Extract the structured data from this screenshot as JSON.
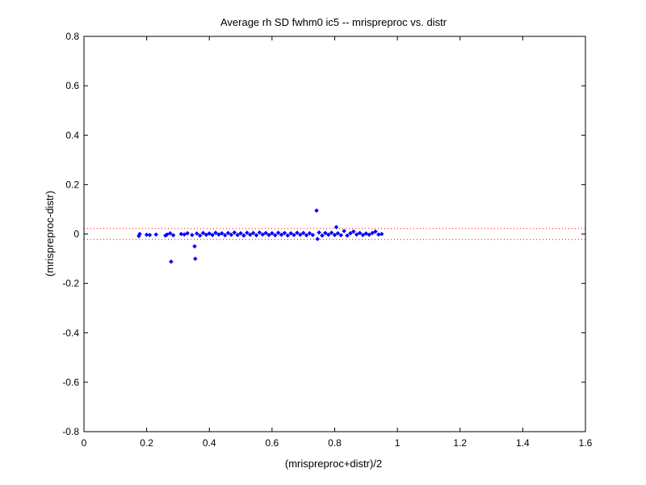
{
  "chart_data": {
    "type": "scatter",
    "title": "Average rh SD fwhm0 ic5 -- mrispreproc vs. distr",
    "xlabel": "(mrispreproc+distr)/2",
    "ylabel": "(mrispreproc-distr)",
    "xlim": [
      0,
      1.6
    ],
    "ylim": [
      -0.8,
      0.8
    ],
    "x_ticks": [
      "0",
      "0.2",
      "0.4",
      "0.6",
      "0.8",
      "1",
      "1.2",
      "1.4",
      "1.6"
    ],
    "y_ticks": [
      "-0.8",
      "-0.6",
      "-0.4",
      "-0.2",
      "0",
      "0.2",
      "0.4",
      "0.6",
      "0.8"
    ],
    "grid": false,
    "marker_color": "#0000ff",
    "reference_line_color": "#ff0000",
    "reference_lines": [
      0.022,
      -0.022
    ],
    "points": [
      [
        0.175,
        -0.008
      ],
      [
        0.178,
        0.0
      ],
      [
        0.2,
        -0.003
      ],
      [
        0.21,
        -0.004
      ],
      [
        0.23,
        -0.002
      ],
      [
        0.26,
        -0.006
      ],
      [
        0.265,
        -0.002
      ],
      [
        0.275,
        0.003
      ],
      [
        0.278,
        -0.112
      ],
      [
        0.285,
        -0.005
      ],
      [
        0.31,
        0.0
      ],
      [
        0.32,
        -0.002
      ],
      [
        0.33,
        0.003
      ],
      [
        0.345,
        -0.004
      ],
      [
        0.353,
        -0.05
      ],
      [
        0.355,
        -0.1
      ],
      [
        0.36,
        0.002
      ],
      [
        0.37,
        -0.006
      ],
      [
        0.38,
        0.004
      ],
      [
        0.39,
        -0.003
      ],
      [
        0.4,
        0.002
      ],
      [
        0.41,
        -0.004
      ],
      [
        0.42,
        0.005
      ],
      [
        0.43,
        -0.002
      ],
      [
        0.44,
        0.003
      ],
      [
        0.45,
        -0.005
      ],
      [
        0.46,
        0.004
      ],
      [
        0.47,
        -0.003
      ],
      [
        0.48,
        0.006
      ],
      [
        0.49,
        -0.004
      ],
      [
        0.5,
        0.003
      ],
      [
        0.51,
        -0.006
      ],
      [
        0.52,
        0.005
      ],
      [
        0.53,
        -0.003
      ],
      [
        0.54,
        0.004
      ],
      [
        0.55,
        -0.005
      ],
      [
        0.56,
        0.006
      ],
      [
        0.57,
        -0.002
      ],
      [
        0.58,
        0.004
      ],
      [
        0.59,
        -0.004
      ],
      [
        0.6,
        0.003
      ],
      [
        0.61,
        -0.005
      ],
      [
        0.62,
        0.005
      ],
      [
        0.63,
        -0.003
      ],
      [
        0.64,
        0.004
      ],
      [
        0.65,
        -0.006
      ],
      [
        0.66,
        0.003
      ],
      [
        0.67,
        -0.004
      ],
      [
        0.68,
        0.005
      ],
      [
        0.69,
        -0.003
      ],
      [
        0.7,
        0.004
      ],
      [
        0.71,
        -0.005
      ],
      [
        0.72,
        0.003
      ],
      [
        0.73,
        -0.004
      ],
      [
        0.742,
        0.095
      ],
      [
        0.745,
        -0.02
      ],
      [
        0.75,
        0.006
      ],
      [
        0.76,
        -0.006
      ],
      [
        0.77,
        0.004
      ],
      [
        0.78,
        -0.003
      ],
      [
        0.79,
        0.005
      ],
      [
        0.8,
        -0.004
      ],
      [
        0.805,
        0.028
      ],
      [
        0.81,
        0.003
      ],
      [
        0.82,
        -0.005
      ],
      [
        0.83,
        0.012
      ],
      [
        0.84,
        -0.006
      ],
      [
        0.85,
        0.003
      ],
      [
        0.86,
        0.01
      ],
      [
        0.87,
        -0.002
      ],
      [
        0.88,
        0.004
      ],
      [
        0.89,
        -0.004
      ],
      [
        0.9,
        0.002
      ],
      [
        0.91,
        -0.003
      ],
      [
        0.92,
        0.004
      ],
      [
        0.93,
        0.01
      ],
      [
        0.94,
        -0.002
      ],
      [
        0.95,
        0.0
      ]
    ]
  }
}
